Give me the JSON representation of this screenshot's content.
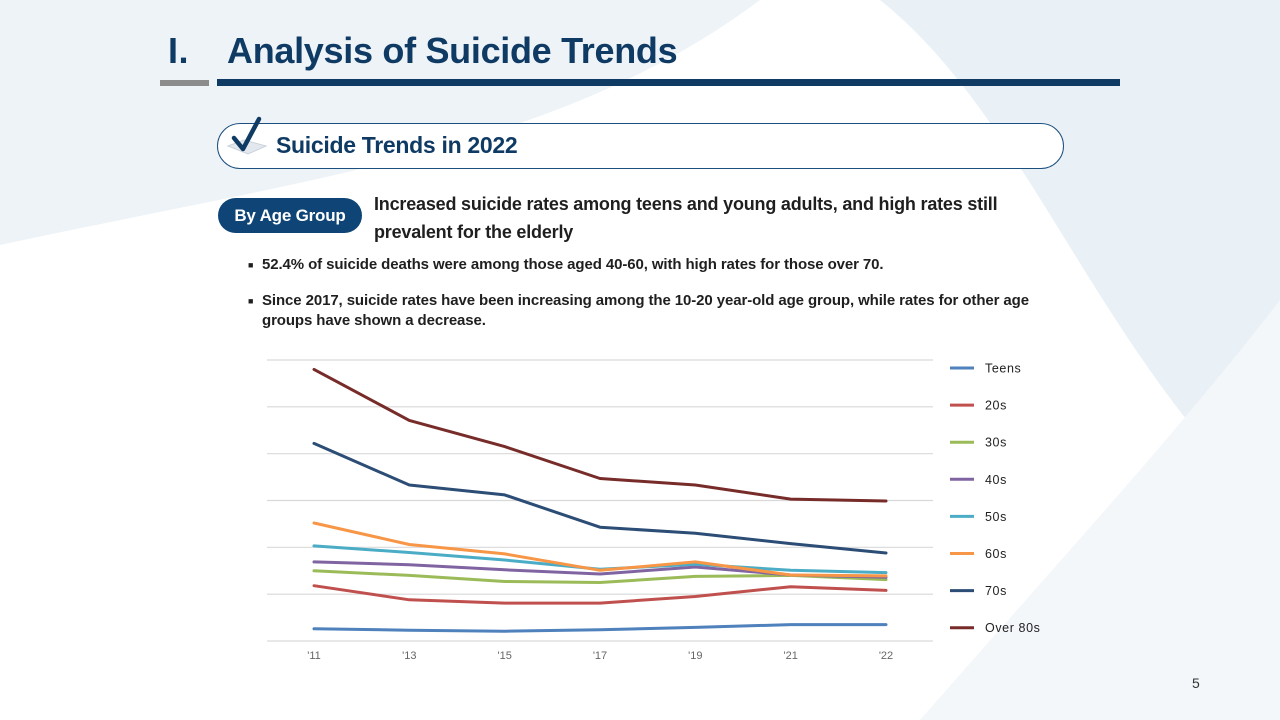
{
  "header": {
    "section_number": "I.",
    "title": "Analysis of Suicide Trends"
  },
  "subtitle": {
    "text": "Suicide Trends in 2022",
    "icon": "checkmark-icon"
  },
  "badge": {
    "label": "By Age Group"
  },
  "headline": "Increased suicide rates among teens and young adults, and high rates still prevalent for the elderly",
  "bullets": [
    "52.4% of suicide deaths were among those aged 40-60, with high rates for those over 70.",
    "Since 2017, suicide rates have been increasing among the 10-20 year-old age group, while rates for other age groups have shown a decrease."
  ],
  "colors": {
    "navy": "#0e3a64",
    "badge": "#0e4576",
    "gray_rule": "#8c8c8c"
  },
  "chart_data": {
    "type": "line",
    "title": "",
    "xlabel": "",
    "ylabel": "",
    "categories": [
      "'11",
      "'13",
      "'15",
      "'17",
      "'19",
      "'21",
      "'22"
    ],
    "ylim": [
      0,
      60
    ],
    "grid": true,
    "y_axis_labels_shown": false,
    "legend_position": "right",
    "series": [
      {
        "name": "Teens",
        "color": "#4f81bd",
        "values": [
          2.6,
          2.3,
          2.1,
          2.4,
          2.9,
          3.5,
          3.5
        ]
      },
      {
        "name": "20s",
        "color": "#c0504d",
        "values": [
          11.8,
          8.8,
          8.1,
          8.1,
          9.5,
          11.6,
          10.8
        ]
      },
      {
        "name": "30s",
        "color": "#9bbb59",
        "values": [
          15.0,
          14.0,
          12.7,
          12.5,
          13.8,
          14.0,
          13.1
        ]
      },
      {
        "name": "40s",
        "color": "#8064a2",
        "values": [
          16.9,
          16.3,
          15.2,
          14.3,
          15.8,
          14.1,
          13.6
        ]
      },
      {
        "name": "50s",
        "color": "#4bacc6",
        "values": [
          20.3,
          18.9,
          17.3,
          15.3,
          16.4,
          15.1,
          14.6
        ]
      },
      {
        "name": "60s",
        "color": "#f79646",
        "values": [
          25.2,
          20.6,
          18.6,
          15.1,
          16.9,
          14.1,
          13.9
        ]
      },
      {
        "name": "70s",
        "color": "#2c4d75",
        "values": [
          42.2,
          33.3,
          31.2,
          24.3,
          23.0,
          20.8,
          18.8
        ]
      },
      {
        "name": "Over 80s",
        "color": "#772c2a",
        "values": [
          58.0,
          47.1,
          41.5,
          34.7,
          33.3,
          30.3,
          29.9
        ]
      }
    ]
  },
  "page_number": "5"
}
